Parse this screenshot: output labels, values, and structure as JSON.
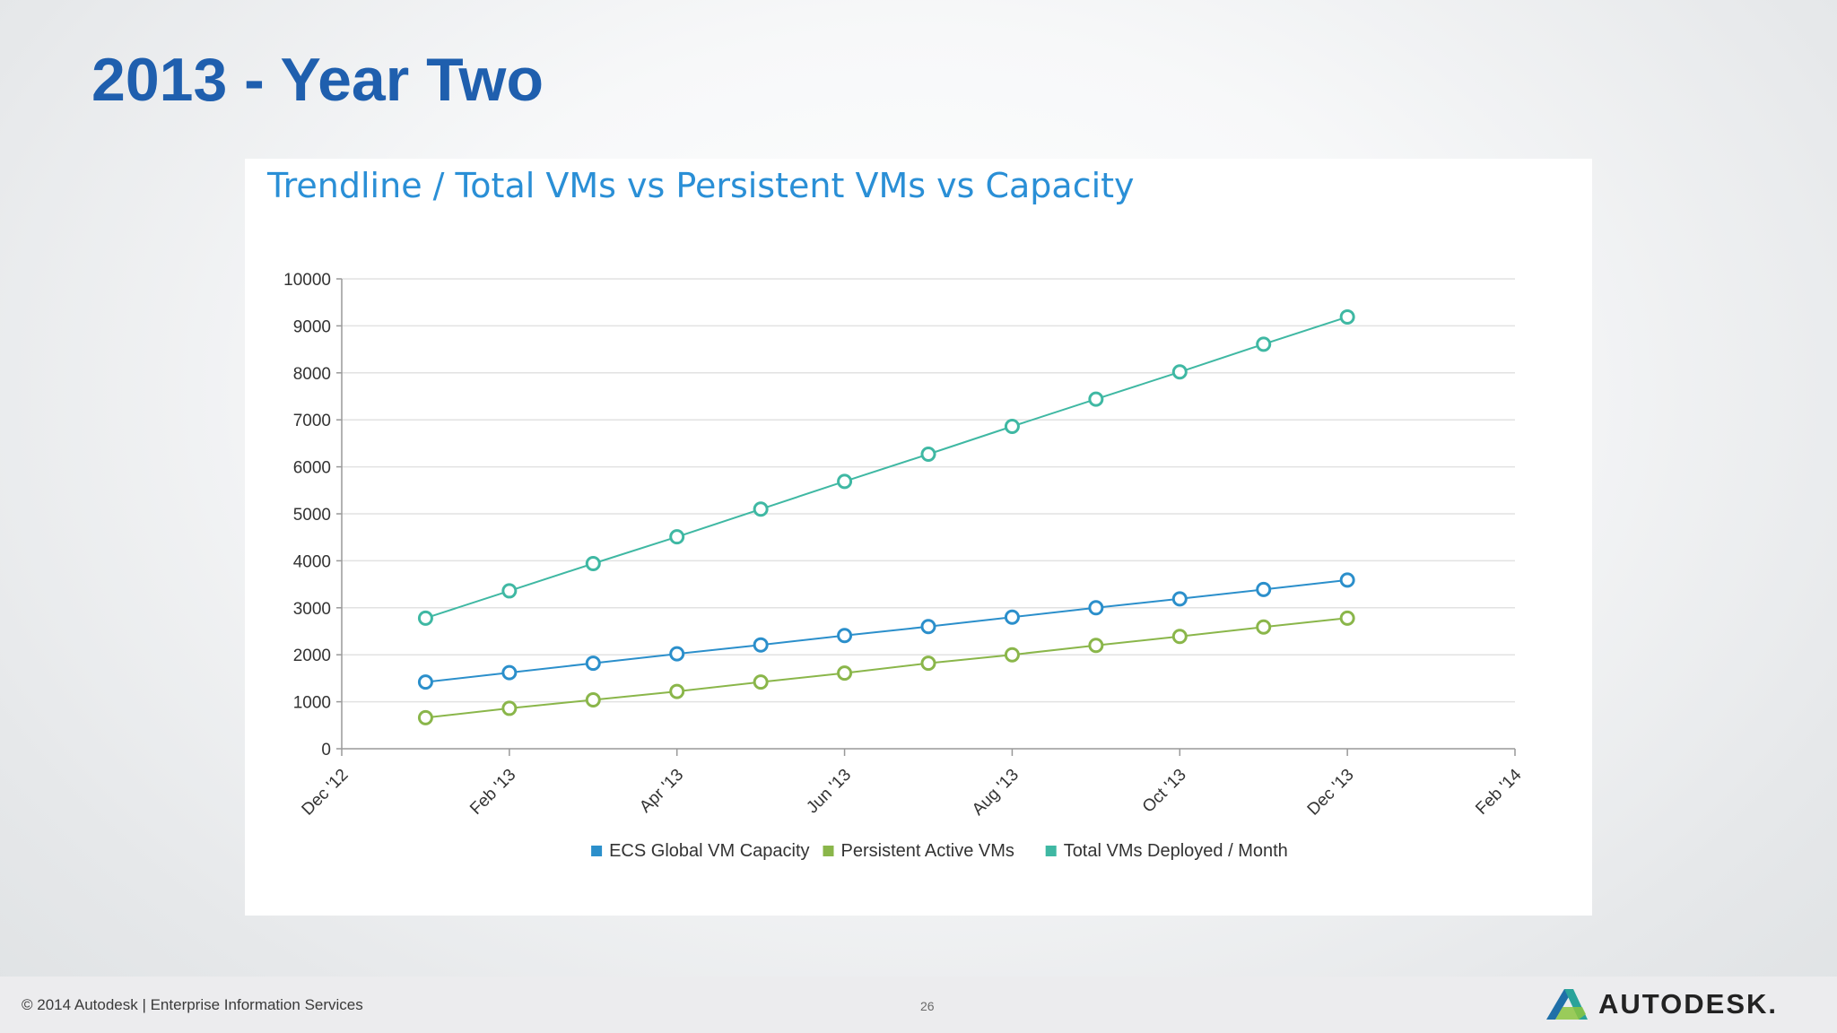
{
  "slide": {
    "title": "2013 - Year Two",
    "footer_text": "© 2014 Autodesk | Enterprise Information Services",
    "page_number": "26",
    "brand_name": "AUTODESK."
  },
  "colors": {
    "title": "#1f5fae",
    "chart_title": "#2a8fd6",
    "capacity": "#2b8fcb",
    "persistent": "#8ab64a",
    "total": "#3fb8a3",
    "grid": "#e2e2e2",
    "axis": "#999999"
  },
  "chart_data": {
    "type": "line",
    "title": "Trendline / Total VMs vs Persistent VMs vs Capacity",
    "xlabel": "",
    "ylabel": "",
    "x_ticks": [
      "Dec '12",
      "Feb '13",
      "Apr '13",
      "Jun '13",
      "Aug '13",
      "Oct '13",
      "Dec '13",
      "Feb '14"
    ],
    "y_ticks": [
      0,
      1000,
      2000,
      3000,
      4000,
      5000,
      6000,
      7000,
      8000,
      9000,
      10000
    ],
    "ylim": [
      0,
      10000
    ],
    "grid": true,
    "legend_position": "bottom",
    "x": [
      "Jan '13",
      "Feb '13",
      "Mar '13",
      "Apr '13",
      "May '13",
      "Jun '13",
      "Jul '13",
      "Aug '13",
      "Sep '13",
      "Oct '13",
      "Nov '13",
      "Dec '13"
    ],
    "series": [
      {
        "name": "ECS Global VM Capacity",
        "color_key": "capacity",
        "values": [
          1420,
          1620,
          1820,
          2020,
          2210,
          2410,
          2600,
          2800,
          3000,
          3190,
          3390,
          3590
        ]
      },
      {
        "name": "Persistent Active VMs",
        "color_key": "persistent",
        "values": [
          660,
          860,
          1040,
          1220,
          1420,
          1610,
          1820,
          2000,
          2200,
          2390,
          2590,
          2780
        ]
      },
      {
        "name": "Total VMs Deployed / Month",
        "color_key": "total",
        "values": [
          2780,
          3360,
          3940,
          4510,
          5100,
          5690,
          6270,
          6860,
          7440,
          8020,
          8610,
          9190
        ]
      }
    ]
  }
}
